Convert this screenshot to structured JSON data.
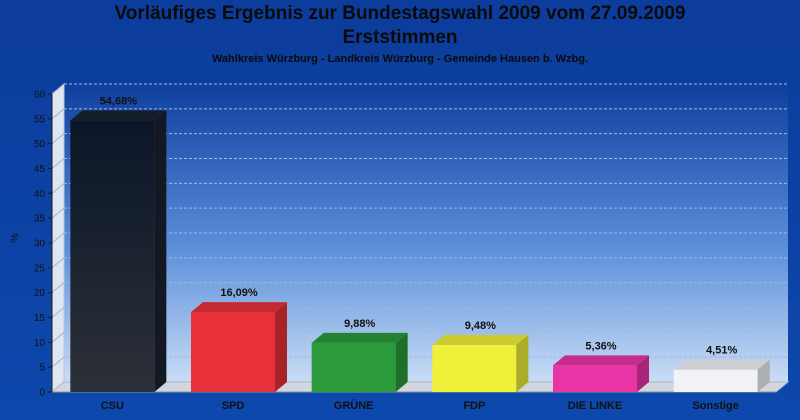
{
  "chart_data": {
    "type": "bar",
    "title": "Vorläufiges Ergebnis zur Bundestagswahl 2009 vom 27.09.2009",
    "subtitle": "Erststimmen",
    "subtitle2": "Wahlkreis Würzburg - Landkreis Würzburg - Gemeinde Hausen b. Wzbg.",
    "xlabel": "",
    "ylabel": "%",
    "ylim": [
      0,
      60
    ],
    "yticks": [
      0,
      5,
      10,
      15,
      20,
      25,
      30,
      35,
      40,
      45,
      50,
      55,
      60
    ],
    "grid": true,
    "categories": [
      "CSU",
      "SPD",
      "GRÜNE",
      "FDP",
      "DIE LINKE",
      "Sonstige"
    ],
    "values": [
      54.68,
      16.09,
      9.88,
      9.48,
      5.36,
      4.51
    ],
    "value_labels": [
      "54,68%",
      "16,09%",
      "9,88%",
      "9,48%",
      "5,36%",
      "4,51%"
    ],
    "colors": [
      "#262c38",
      "#e8303a",
      "#2a9a3a",
      "#eef03a",
      "#e834a4",
      "#f0f2f8"
    ]
  }
}
